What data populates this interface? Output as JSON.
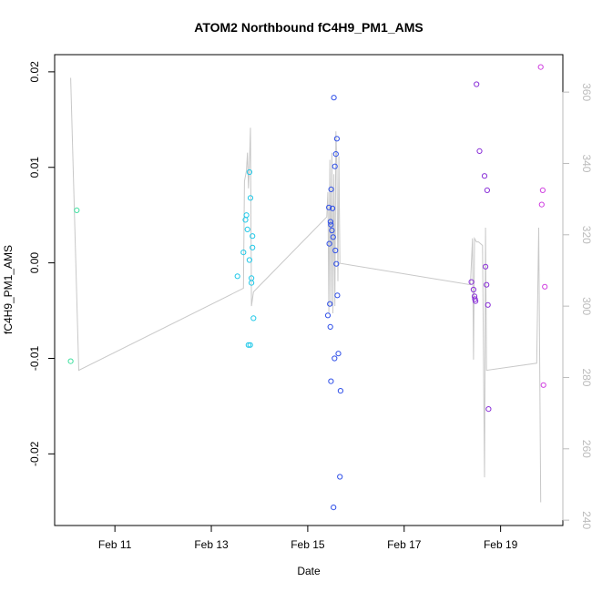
{
  "chart_data": {
    "type": "scatter",
    "title": "ATOM2 Northbound fC4H9_PM1_AMS",
    "xlabel": "Date",
    "ylabel": "fC4H9_PM1_AMS",
    "x_ticks": [
      {
        "date": "2016-02-11",
        "label": "Feb 11"
      },
      {
        "date": "2016-02-13",
        "label": "Feb 13"
      },
      {
        "date": "2016-02-15",
        "label": "Feb 15"
      },
      {
        "date": "2016-02-17",
        "label": "Feb 17"
      },
      {
        "date": "2016-02-19",
        "label": "Feb 19"
      }
    ],
    "xlim": [
      "2016-02-09 18:00",
      "2016-02-20 07:00"
    ],
    "y_ticks": [
      -0.02,
      -0.01,
      0.0,
      0.01,
      0.02
    ],
    "y_tick_labels": [
      "-0.02",
      "-0.01",
      "0.00",
      "0.01",
      "0.02"
    ],
    "ylim": [
      -0.0275,
      0.0218
    ],
    "y2_ticks": [
      240,
      260,
      280,
      300,
      320,
      340,
      360
    ],
    "y2_tick_labels": [
      "240",
      "260",
      "280",
      "300",
      "320",
      "340",
      "360"
    ],
    "y2lim": [
      238.5,
      370.5
    ],
    "grid": false,
    "points": [
      {
        "x": "2016-02-10 02:00",
        "y": -0.0103,
        "color": "#40e0a0"
      },
      {
        "x": "2016-02-10 05:00",
        "y": 0.0055,
        "color": "#40e0a0"
      },
      {
        "x": "2016-02-13 13:00",
        "y": -0.0014,
        "color": "#20c8e8"
      },
      {
        "x": "2016-02-13 16:00",
        "y": 0.0011,
        "color": "#20c8e8"
      },
      {
        "x": "2016-02-13 17:00",
        "y": 0.0045,
        "color": "#20c8e8"
      },
      {
        "x": "2016-02-13 17:30",
        "y": 0.005,
        "color": "#20c8e8"
      },
      {
        "x": "2016-02-13 18:00",
        "y": 0.0035,
        "color": "#20c8e8"
      },
      {
        "x": "2016-02-13 18:30",
        "y": -0.0086,
        "color": "#20c8e8"
      },
      {
        "x": "2016-02-13 19:00",
        "y": 0.0095,
        "color": "#20c8e8"
      },
      {
        "x": "2016-02-13 19:00",
        "y": 0.0003,
        "color": "#20c8e8"
      },
      {
        "x": "2016-02-13 19:20",
        "y": -0.0086,
        "color": "#20c8e8"
      },
      {
        "x": "2016-02-13 19:30",
        "y": 0.0068,
        "color": "#20c8e8"
      },
      {
        "x": "2016-02-13 20:00",
        "y": -0.0016,
        "color": "#20c8e8"
      },
      {
        "x": "2016-02-13 20:00",
        "y": -0.0021,
        "color": "#20c8e8"
      },
      {
        "x": "2016-02-13 20:30",
        "y": 0.0016,
        "color": "#20c8e8"
      },
      {
        "x": "2016-02-13 20:30",
        "y": 0.0028,
        "color": "#20c8e8"
      },
      {
        "x": "2016-02-13 21:00",
        "y": -0.0058,
        "color": "#20c8e8"
      },
      {
        "x": "2016-02-15 10:00",
        "y": -0.0055,
        "color": "#3050e8"
      },
      {
        "x": "2016-02-15 10:30",
        "y": 0.0058,
        "color": "#3050e8"
      },
      {
        "x": "2016-02-15 10:45",
        "y": 0.002,
        "color": "#3050e8"
      },
      {
        "x": "2016-02-15 11:00",
        "y": -0.0043,
        "color": "#3050e8"
      },
      {
        "x": "2016-02-15 11:15",
        "y": -0.0067,
        "color": "#3050e8"
      },
      {
        "x": "2016-02-15 11:20",
        "y": 0.0043,
        "color": "#3050e8"
      },
      {
        "x": "2016-02-15 11:30",
        "y": 0.004,
        "color": "#3050e8"
      },
      {
        "x": "2016-02-15 11:35",
        "y": -0.0124,
        "color": "#3050e8"
      },
      {
        "x": "2016-02-15 11:40",
        "y": 0.0077,
        "color": "#3050e8"
      },
      {
        "x": "2016-02-15 12:00",
        "y": 0.0034,
        "color": "#3050e8"
      },
      {
        "x": "2016-02-15 12:20",
        "y": 0.0057,
        "color": "#3050e8"
      },
      {
        "x": "2016-02-15 12:40",
        "y": 0.0027,
        "color": "#3050e8"
      },
      {
        "x": "2016-02-15 12:50",
        "y": -0.0256,
        "color": "#3050e8"
      },
      {
        "x": "2016-02-15 13:00",
        "y": 0.0173,
        "color": "#3050e8"
      },
      {
        "x": "2016-02-15 13:20",
        "y": -0.01,
        "color": "#3050e8"
      },
      {
        "x": "2016-02-15 13:30",
        "y": 0.0101,
        "color": "#3050e8"
      },
      {
        "x": "2016-02-15 13:45",
        "y": 0.0013,
        "color": "#3050e8"
      },
      {
        "x": "2016-02-15 14:00",
        "y": 0.0114,
        "color": "#3050e8"
      },
      {
        "x": "2016-02-15 14:15",
        "y": -0.0001,
        "color": "#3050e8"
      },
      {
        "x": "2016-02-15 14:30",
        "y": 0.013,
        "color": "#3050e8"
      },
      {
        "x": "2016-02-15 14:45",
        "y": -0.0034,
        "color": "#3050e8"
      },
      {
        "x": "2016-02-15 15:15",
        "y": -0.0095,
        "color": "#3050e8"
      },
      {
        "x": "2016-02-15 16:00",
        "y": -0.0224,
        "color": "#3050e8"
      },
      {
        "x": "2016-02-15 16:20",
        "y": -0.0134,
        "color": "#3050e8"
      },
      {
        "x": "2016-02-18 09:30",
        "y": -0.002,
        "color": "#8a30d8"
      },
      {
        "x": "2016-02-18 10:30",
        "y": -0.0028,
        "color": "#8a30d8"
      },
      {
        "x": "2016-02-18 11:00",
        "y": -0.0035,
        "color": "#8a30d8"
      },
      {
        "x": "2016-02-18 11:15",
        "y": -0.0038,
        "color": "#8a30d8"
      },
      {
        "x": "2016-02-18 11:30",
        "y": -0.004,
        "color": "#8a30d8"
      },
      {
        "x": "2016-02-18 12:00",
        "y": 0.0187,
        "color": "#8a30d8"
      },
      {
        "x": "2016-02-18 13:30",
        "y": 0.0117,
        "color": "#8a30d8"
      },
      {
        "x": "2016-02-18 16:00",
        "y": 0.0091,
        "color": "#8a30d8"
      },
      {
        "x": "2016-02-18 16:30",
        "y": -0.0004,
        "color": "#8a30d8"
      },
      {
        "x": "2016-02-18 17:00",
        "y": -0.0023,
        "color": "#8a30d8"
      },
      {
        "x": "2016-02-18 17:20",
        "y": 0.0076,
        "color": "#8a30d8"
      },
      {
        "x": "2016-02-18 17:40",
        "y": -0.0044,
        "color": "#8a30d8"
      },
      {
        "x": "2016-02-18 18:00",
        "y": -0.0153,
        "color": "#8a30d8"
      },
      {
        "x": "2016-02-19 20:00",
        "y": 0.0205,
        "color": "#d040e0"
      },
      {
        "x": "2016-02-19 20:30",
        "y": 0.0061,
        "color": "#d040e0"
      },
      {
        "x": "2016-02-19 21:00",
        "y": 0.0076,
        "color": "#d040e0"
      },
      {
        "x": "2016-02-19 21:20",
        "y": -0.0128,
        "color": "#d040e0"
      },
      {
        "x": "2016-02-19 22:00",
        "y": -0.0025,
        "color": "#d040e0"
      }
    ],
    "secondary_line": {
      "color": "#c8c8c8",
      "axis": "right",
      "points": [
        {
          "x": "2016-02-10 02:00",
          "y": 364
        },
        {
          "x": "2016-02-10 06:00",
          "y": 282
        },
        {
          "x": "2016-02-13 16:00",
          "y": 305
        },
        {
          "x": "2016-02-13 16:30",
          "y": 335
        },
        {
          "x": "2016-02-13 17:30",
          "y": 338
        },
        {
          "x": "2016-02-13 18:00",
          "y": 343
        },
        {
          "x": "2016-02-13 18:30",
          "y": 333
        },
        {
          "x": "2016-02-13 19:00",
          "y": 340
        },
        {
          "x": "2016-02-13 19:30",
          "y": 350
        },
        {
          "x": "2016-02-13 20:00",
          "y": 300
        },
        {
          "x": "2016-02-13 21:00",
          "y": 304
        },
        {
          "x": "2016-02-15 09:30",
          "y": 325
        },
        {
          "x": "2016-02-15 10:00",
          "y": 332
        },
        {
          "x": "2016-02-15 10:30",
          "y": 298
        },
        {
          "x": "2016-02-15 11:00",
          "y": 341
        },
        {
          "x": "2016-02-15 11:30",
          "y": 300
        },
        {
          "x": "2016-02-15 12:00",
          "y": 343
        },
        {
          "x": "2016-02-15 12:30",
          "y": 298
        },
        {
          "x": "2016-02-15 13:00",
          "y": 337
        },
        {
          "x": "2016-02-15 13:30",
          "y": 300
        },
        {
          "x": "2016-02-15 14:00",
          "y": 349
        },
        {
          "x": "2016-02-15 14:30",
          "y": 339
        },
        {
          "x": "2016-02-15 15:00",
          "y": 307
        },
        {
          "x": "2016-02-15 15:30",
          "y": 342
        },
        {
          "x": "2016-02-15 16:00",
          "y": 312
        },
        {
          "x": "2016-02-18 09:00",
          "y": 306
        },
        {
          "x": "2016-02-18 10:00",
          "y": 319
        },
        {
          "x": "2016-02-18 10:30",
          "y": 285
        },
        {
          "x": "2016-02-18 11:00",
          "y": 319
        },
        {
          "x": "2016-02-18 12:00",
          "y": 318
        },
        {
          "x": "2016-02-18 13:00",
          "y": 318
        },
        {
          "x": "2016-02-18 15:00",
          "y": 317
        },
        {
          "x": "2016-02-18 16:00",
          "y": 252
        },
        {
          "x": "2016-02-18 16:30",
          "y": 322
        },
        {
          "x": "2016-02-18 17:00",
          "y": 282
        },
        {
          "x": "2016-02-19 18:00",
          "y": 284
        },
        {
          "x": "2016-02-19 19:00",
          "y": 322
        },
        {
          "x": "2016-02-19 20:00",
          "y": 245
        }
      ]
    }
  }
}
